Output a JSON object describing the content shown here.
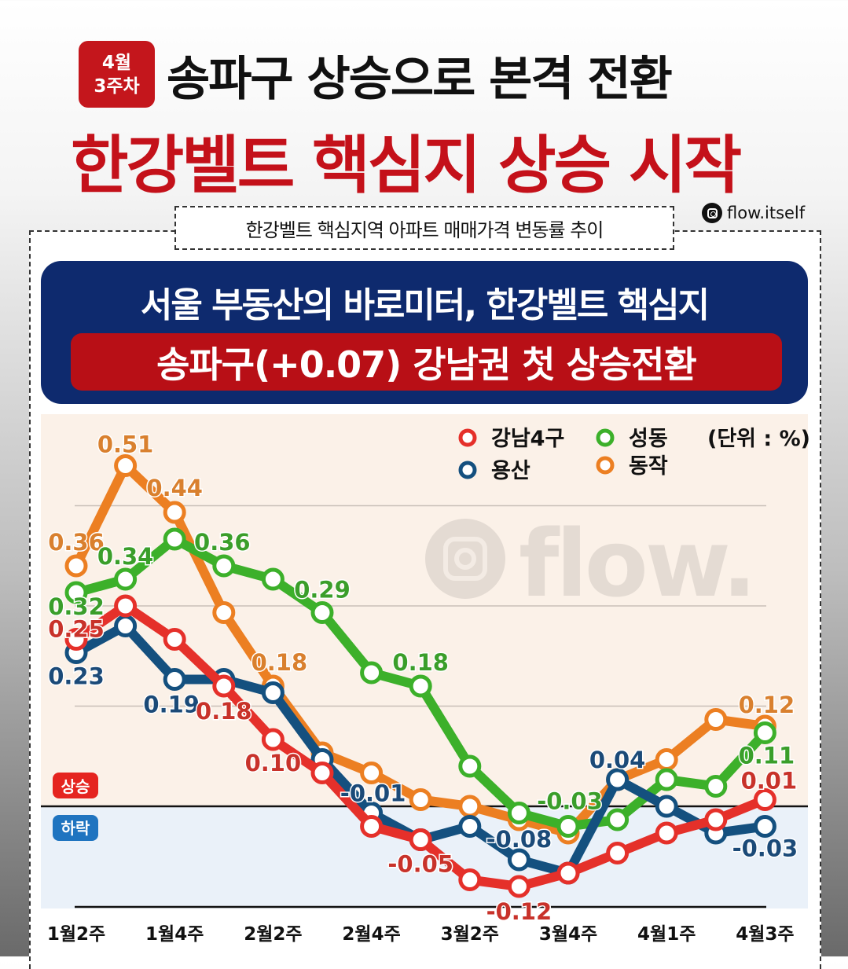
{
  "header": {
    "badge_line1": "4월",
    "badge_line2": "3주차",
    "title_line1": "송파구 상승으로 본격 전환",
    "title_line2": "한강벨트 핵심지 상승 시작",
    "subtitle": "한강벨트 핵심지역 아파트 매매가격 변동률 추이",
    "handle": "flow.itself"
  },
  "banner": {
    "line1": "서울 부동산의 바로미터, 한강벨트 핵심지",
    "line2": "송파구(+0.07) 강남권 첫 상승전환"
  },
  "watermark": "flow.",
  "colors": {
    "red": "#e5302a",
    "blue": "#14507f",
    "green": "#3cb02a",
    "orange": "#ec7f22",
    "rise_bg": "#fbf1e8",
    "fall_bg": "#eaf1f9"
  },
  "chart_data": {
    "type": "line",
    "unit_label": "(단위 : %)",
    "zones": {
      "rise": "상승",
      "fall": "하락"
    },
    "x_tick_labels": [
      "1월2주",
      "",
      "1월4주",
      "",
      "2월2주",
      "",
      "2월4주",
      "",
      "3월2주",
      "",
      "3월4주",
      "",
      "4월1주",
      "",
      "4월3주"
    ],
    "ylim": [
      -0.15,
      0.55
    ],
    "grid_values": [
      0.45,
      0.3,
      0.15
    ],
    "zero_line": 0,
    "legend_placement": "top-right",
    "series": [
      {
        "name": "동작",
        "color": "#ec7f22",
        "label_color": "#d9802e",
        "values": [
          0.36,
          0.51,
          0.44,
          0.29,
          0.18,
          0.08,
          0.05,
          0.01,
          0.0,
          -0.02,
          -0.04,
          0.04,
          0.07,
          0.13,
          0.12
        ],
        "data_labels": {
          "0": "0.36",
          "1": "0.51",
          "2": "0.44",
          "4": "0.18",
          "14": "0.12"
        }
      },
      {
        "name": "성동",
        "color": "#3cb02a",
        "label_color": "#3a9e2a",
        "values": [
          0.32,
          0.34,
          0.4,
          0.36,
          0.34,
          0.29,
          0.2,
          0.18,
          0.06,
          -0.01,
          -0.03,
          -0.02,
          0.04,
          0.03,
          0.11
        ],
        "data_labels": {
          "0": "0.32",
          "1": "0.34",
          "3": "0.36",
          "5": "0.29",
          "7": "0.18",
          "10": "-0.03",
          "14": "0.11"
        }
      },
      {
        "name": "용산",
        "color": "#14507f",
        "label_color": "#1b4a78",
        "values": [
          0.23,
          0.27,
          0.19,
          0.19,
          0.17,
          0.07,
          -0.01,
          -0.05,
          -0.03,
          -0.08,
          -0.1,
          0.04,
          0.0,
          -0.04,
          -0.03
        ],
        "data_labels": {
          "0": "0.23",
          "2": "0.19",
          "6": "-0.01",
          "9": "-0.08",
          "11": "0.04",
          "14": "-0.03"
        }
      },
      {
        "name": "강남4구",
        "color": "#e5302a",
        "label_color": "#c8322a",
        "values": [
          0.25,
          0.3,
          0.25,
          0.18,
          0.1,
          0.05,
          -0.03,
          -0.05,
          -0.11,
          -0.12,
          -0.1,
          -0.07,
          -0.04,
          -0.02,
          0.01
        ],
        "data_labels": {
          "0": "0.25",
          "3": "0.18",
          "4": "0.10",
          "7": "-0.05",
          "9": "-0.12",
          "14": "0.01"
        }
      }
    ]
  }
}
